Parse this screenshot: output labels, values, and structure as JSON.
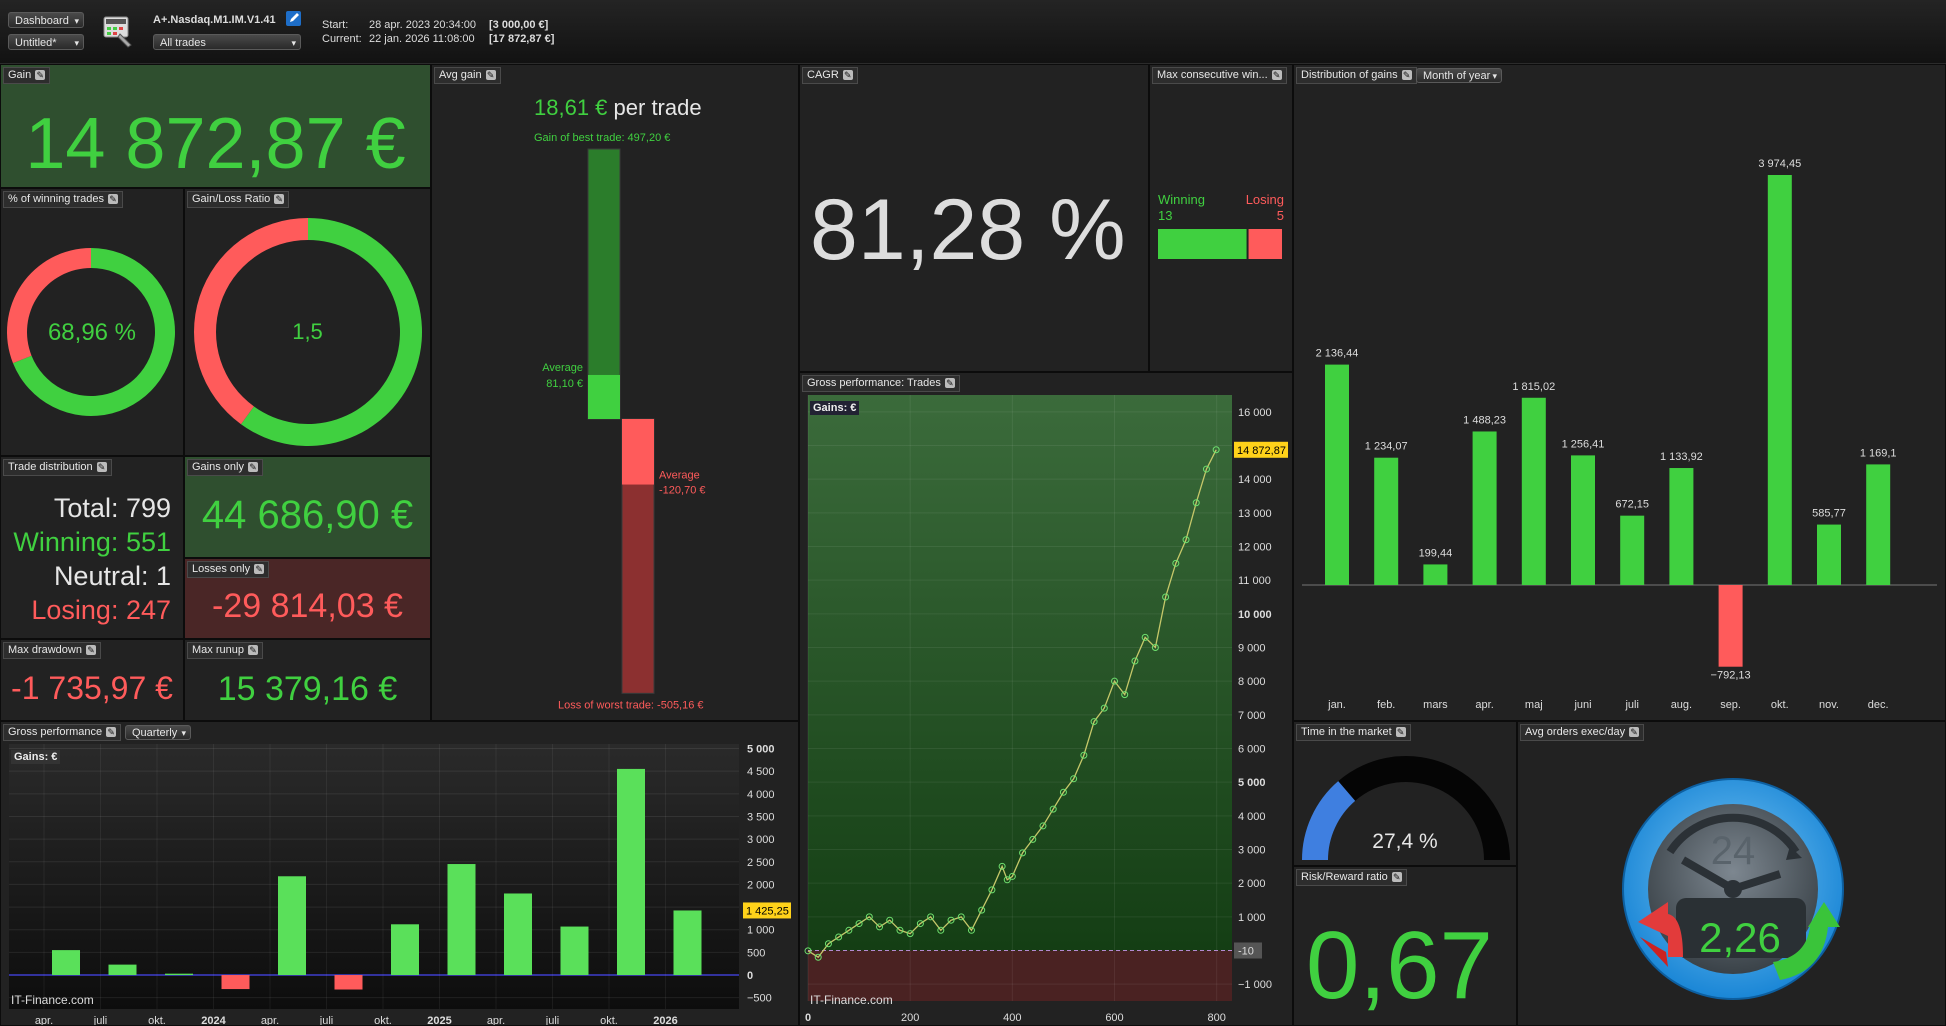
{
  "toolbar": {
    "view_select": "Dashboard",
    "layout_select": "Untitled*",
    "strategy_name": "A+.Nasdaq.M1.IM.V1.41",
    "trades_filter": "All trades",
    "start_label": "Start:",
    "start_date": "28 apr. 2023 20:34:00",
    "start_value": "[3 000,00 €]",
    "current_label": "Current:",
    "current_date": "22 jan. 2026 11:08:00",
    "current_value": "[17 872,87 €]"
  },
  "gain": {
    "title": "Gain",
    "value": "14 872,87 €"
  },
  "winning_pct": {
    "title": "% of winning trades",
    "value": "68,96 %",
    "fraction": 0.6896
  },
  "gain_loss_ratio": {
    "title": "Gain/Loss Ratio",
    "value": "1,5",
    "fraction": 0.6
  },
  "trade_distribution": {
    "title": "Trade distribution",
    "total": "Total: 799",
    "winning": "Winning: 551",
    "neutral": "Neutral: 1",
    "losing": "Losing: 247"
  },
  "gains_only": {
    "title": "Gains only",
    "value": "44 686,90 €"
  },
  "losses_only": {
    "title": "Losses only",
    "value": "-29 814,03 €"
  },
  "max_drawdown": {
    "title": "Max drawdown",
    "value": "-1 735,97 €"
  },
  "max_runup": {
    "title": "Max runup",
    "value": "15 379,16 €"
  },
  "avg_gain": {
    "title": "Avg gain",
    "value": "18,61 €",
    "suffix": "per trade",
    "best_label": "Gain of best trade: 497,20 €",
    "avg_gain_label": "Average",
    "avg_gain_value": "81,10 €",
    "avg_loss_label": "Average",
    "avg_loss_value": "-120,70 €",
    "worst_label": "Loss of worst trade: -505,16 €",
    "best": 497.2,
    "avg_win": 81.1,
    "avg_loss": -120.7,
    "worst": -505.16
  },
  "cagr": {
    "title": "CAGR",
    "value": "81,28 %"
  },
  "max_consecutive": {
    "title": "Max consecutive win...",
    "winning_label": "Winning",
    "losing_label": "Losing",
    "winning_value": "13",
    "losing_value": "5",
    "win": 13,
    "lose": 5
  },
  "distribution": {
    "title": "Distribution of gains",
    "period_select": "Month of year"
  },
  "gross_perf_trades": {
    "title": "Gross performance: Trades",
    "gains_tag": "Gains: €",
    "last_label": "14 872,87",
    "zero_label": "-10",
    "watermark": "IT-Finance.com"
  },
  "gross_perf": {
    "title": "Gross performance",
    "period_select": "Quarterly",
    "gains_tag": "Gains: €",
    "last_label": "1 425,25",
    "watermark": "IT-Finance.com"
  },
  "time_in_market": {
    "title": "Time in the market",
    "value": "27,4 %",
    "fraction": 0.274
  },
  "avg_orders": {
    "title": "Avg orders exec/day",
    "value": "2,26",
    "clock_label": "24"
  },
  "risk_reward": {
    "title": "Risk/Reward ratio",
    "value": "0,67"
  },
  "colors": {
    "green": "#40d040",
    "red": "#ff5b5b",
    "blue": "#3f7fe0",
    "highlight": "#ffd21a"
  },
  "chart_data": [
    {
      "type": "bar",
      "title": "Distribution of gains",
      "categories": [
        "jan.",
        "feb.",
        "mars",
        "apr.",
        "maj",
        "juni",
        "juli",
        "aug.",
        "sep.",
        "okt.",
        "nov.",
        "dec."
      ],
      "values": [
        2136.44,
        1234.07,
        199.44,
        1488.23,
        1815.02,
        1256.41,
        672.15,
        1133.92,
        -792.13,
        3974.45,
        585.77,
        1169.1
      ],
      "labels": [
        "2 136,44",
        "1 234,07",
        "199,44",
        "1 488,23",
        "1 815,02",
        "1 256,41",
        "672,15",
        "1 133,92",
        "−792,13",
        "3 974,45",
        "585,77",
        "1 169,1"
      ],
      "ylim": [
        -1000,
        4200
      ]
    },
    {
      "type": "line",
      "title": "Gross performance: Trades",
      "x_ticks": [
        0,
        200,
        400,
        600,
        800
      ],
      "y_ticks": [
        -1000,
        1000,
        2000,
        3000,
        4000,
        5000,
        6000,
        7000,
        8000,
        9000,
        10000,
        11000,
        12000,
        13000,
        14000,
        15000,
        16000
      ],
      "y_tick_labels": [
        "−1 000",
        "1 000",
        "2 000",
        "3 000",
        "4 000",
        "5 000",
        "6 000",
        "7 000",
        "8 000",
        "9 000",
        "10 000",
        "11 000",
        "12 000",
        "13 000",
        "14 000",
        "15 000",
        "16 000"
      ],
      "x_tick_labels": [
        "0",
        "200",
        "400",
        "600",
        "800"
      ],
      "xlim": [
        0,
        830
      ],
      "ylim": [
        -1500,
        16500
      ],
      "x": [
        0,
        20,
        40,
        60,
        80,
        100,
        120,
        140,
        160,
        180,
        200,
        220,
        240,
        260,
        280,
        300,
        320,
        340,
        360,
        380,
        390,
        400,
        420,
        440,
        460,
        480,
        500,
        520,
        540,
        560,
        580,
        600,
        620,
        640,
        660,
        680,
        700,
        720,
        740,
        760,
        780,
        799
      ],
      "y": [
        -10,
        -200,
        200,
        400,
        600,
        800,
        1000,
        700,
        900,
        600,
        500,
        800,
        1000,
        600,
        900,
        1000,
        600,
        1200,
        1800,
        2500,
        2100,
        2200,
        2900,
        3300,
        3700,
        4200,
        4700,
        5100,
        5800,
        6800,
        7200,
        8000,
        7600,
        8600,
        9300,
        9000,
        10500,
        11500,
        12200,
        13300,
        14300,
        14872.87
      ]
    },
    {
      "type": "bar",
      "title": "Gross performance",
      "categories": [
        "apr.",
        "juli",
        "okt.",
        "2024",
        "apr.",
        "juli",
        "okt.",
        "2025",
        "apr.",
        "juli",
        "okt.",
        "2026"
      ],
      "values": [
        550,
        230,
        30,
        -310,
        2180,
        -320,
        1120,
        2450,
        1800,
        1070,
        4550,
        1425.25
      ],
      "y_ticks": [
        -500,
        0,
        500,
        1000,
        1500,
        2000,
        2500,
        3000,
        3500,
        4000,
        4500,
        5000
      ],
      "y_tick_labels": [
        "−500",
        "0",
        "500",
        "1 000",
        "1 500",
        "2 000",
        "2 500",
        "3 000",
        "3 500",
        "4 000",
        "4 500",
        "5 000"
      ],
      "ylim": [
        -750,
        5100
      ]
    }
  ]
}
